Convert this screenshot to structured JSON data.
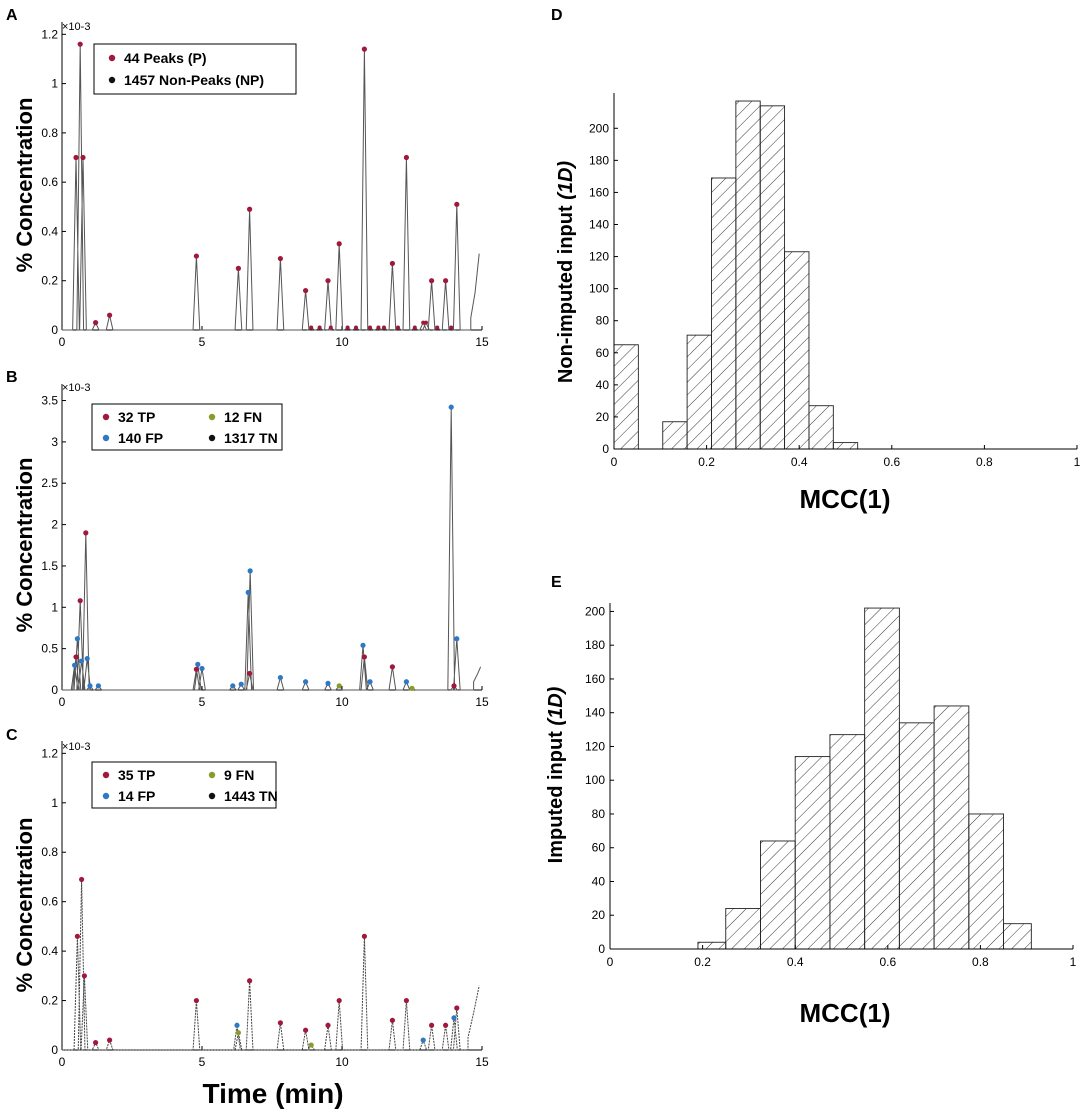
{
  "figure": {
    "time_label": "Time (min)"
  },
  "chart_data": [
    {
      "panel": "A",
      "type": "line",
      "ylabel": "% Concentration",
      "exponent": "×10-3",
      "xlim": [
        0,
        15
      ],
      "ylim": [
        0,
        1.25
      ],
      "xticks": [
        0,
        5,
        10,
        15
      ],
      "yticks": [
        0,
        0.2,
        0.4,
        0.6,
        0.8,
        1,
        1.2
      ],
      "ytick_labels": [
        "0",
        "0.2",
        "0.4",
        "0.6",
        "0.8",
        "1",
        "1.2"
      ],
      "legend": [
        {
          "label": "44 Peaks (P)",
          "color": "#a0183c"
        },
        {
          "label": "1457 Non-Peaks (NP)",
          "color": "#111111"
        }
      ],
      "peaks": [
        [
          0.5,
          0.7
        ],
        [
          0.65,
          1.16
        ],
        [
          0.75,
          0.7
        ],
        [
          1.2,
          0.03
        ],
        [
          1.7,
          0.06
        ],
        [
          4.8,
          0.3
        ],
        [
          6.3,
          0.25
        ],
        [
          6.7,
          0.49
        ],
        [
          7.8,
          0.29
        ],
        [
          8.7,
          0.16
        ],
        [
          9.5,
          0.2
        ],
        [
          9.9,
          0.35
        ],
        [
          10.8,
          1.14
        ],
        [
          11.8,
          0.27
        ],
        [
          12.3,
          0.7
        ],
        [
          13.2,
          0.2
        ],
        [
          13.7,
          0.2
        ],
        [
          14.1,
          0.51
        ]
      ],
      "minor_points": [
        [
          8.9,
          0.01
        ],
        [
          9.2,
          0.01
        ],
        [
          9.6,
          0.01
        ],
        [
          10.2,
          0.01
        ],
        [
          10.5,
          0.01
        ],
        [
          11.0,
          0.01
        ],
        [
          11.3,
          0.01
        ],
        [
          11.5,
          0.01
        ],
        [
          12.0,
          0.01
        ],
        [
          12.6,
          0.01
        ],
        [
          12.9,
          0.03
        ],
        [
          13.0,
          0.03
        ],
        [
          13.4,
          0.01
        ],
        [
          13.9,
          0.01
        ]
      ],
      "tail": [
        [
          14.6,
          0.05
        ],
        [
          14.75,
          0.15
        ],
        [
          14.9,
          0.31
        ]
      ]
    },
    {
      "panel": "B",
      "type": "line",
      "ylabel": "% Concentration",
      "exponent": "×10-3",
      "xlim": [
        0,
        15
      ],
      "ylim": [
        0,
        3.7
      ],
      "xticks": [
        0,
        5,
        10,
        15
      ],
      "yticks": [
        0,
        0.5,
        1,
        1.5,
        2,
        2.5,
        3,
        3.5
      ],
      "ytick_labels": [
        "0",
        "0.5",
        "1",
        "1.5",
        "2",
        "2.5",
        "3",
        "3.5"
      ],
      "legend": [
        {
          "label": "32 TP",
          "color": "#a0183c"
        },
        {
          "label": "12 FN",
          "color": "#8a9a2b"
        },
        {
          "label": "140 FP",
          "color": "#2f78c4"
        },
        {
          "label": "1317 TN",
          "color": "#111111"
        }
      ],
      "tp": [
        [
          0.5,
          0.4
        ],
        [
          0.65,
          1.08
        ],
        [
          0.85,
          1.9
        ],
        [
          4.8,
          0.25
        ],
        [
          6.7,
          0.2
        ],
        [
          10.8,
          0.4
        ],
        [
          11.8,
          0.28
        ],
        [
          14.0,
          0.05
        ]
      ],
      "fp": [
        [
          0.45,
          0.3
        ],
        [
          0.55,
          0.62
        ],
        [
          0.7,
          0.35
        ],
        [
          0.9,
          0.38
        ],
        [
          1.0,
          0.05
        ],
        [
          1.3,
          0.05
        ],
        [
          4.85,
          0.31
        ],
        [
          5.0,
          0.26
        ],
        [
          6.1,
          0.05
        ],
        [
          6.65,
          1.18
        ],
        [
          6.72,
          1.44
        ],
        [
          7.8,
          0.15
        ],
        [
          8.7,
          0.1
        ],
        [
          10.75,
          0.54
        ],
        [
          13.9,
          3.42
        ],
        [
          14.1,
          0.62
        ],
        [
          11.0,
          0.1
        ],
        [
          12.3,
          0.1
        ],
        [
          9.5,
          0.08
        ],
        [
          6.4,
          0.07
        ]
      ],
      "fn": [
        [
          9.9,
          0.05
        ],
        [
          12.5,
          0.02
        ]
      ],
      "tail": [
        [
          14.7,
          0.1
        ],
        [
          14.85,
          0.2
        ],
        [
          14.95,
          0.28
        ]
      ]
    },
    {
      "panel": "C",
      "type": "line",
      "ylabel": "% Concentration",
      "exponent": "×10-3",
      "xlabel_key": "time",
      "xlim": [
        0,
        15
      ],
      "ylim": [
        0,
        1.25
      ],
      "xticks": [
        0,
        5,
        10,
        15
      ],
      "yticks": [
        0,
        0.2,
        0.4,
        0.6,
        0.8,
        1,
        1.2
      ],
      "ytick_labels": [
        "0",
        "0.2",
        "0.4",
        "0.6",
        "0.8",
        "1",
        "1.2"
      ],
      "legend": [
        {
          "label": "35 TP",
          "color": "#a0183c"
        },
        {
          "label": "9 FN",
          "color": "#8a9a2b"
        },
        {
          "label": "14 FP",
          "color": "#2f78c4"
        },
        {
          "label": "1443 TN",
          "color": "#111111"
        }
      ],
      "tp": [
        [
          0.55,
          0.46
        ],
        [
          0.7,
          0.69
        ],
        [
          0.8,
          0.3
        ],
        [
          1.2,
          0.03
        ],
        [
          1.7,
          0.04
        ],
        [
          4.8,
          0.2
        ],
        [
          6.7,
          0.28
        ],
        [
          7.8,
          0.11
        ],
        [
          8.7,
          0.08
        ],
        [
          9.5,
          0.1
        ],
        [
          9.9,
          0.2
        ],
        [
          10.8,
          0.46
        ],
        [
          11.8,
          0.12
        ],
        [
          12.3,
          0.2
        ],
        [
          13.2,
          0.1
        ],
        [
          13.7,
          0.1
        ],
        [
          14.1,
          0.17
        ]
      ],
      "fp": [
        [
          6.25,
          0.1
        ],
        [
          14.0,
          0.13
        ],
        [
          12.9,
          0.04
        ]
      ],
      "fn": [
        [
          6.3,
          0.07
        ],
        [
          8.9,
          0.02
        ]
      ],
      "tail": [
        [
          14.5,
          0.05
        ],
        [
          14.7,
          0.15
        ],
        [
          14.9,
          0.26
        ]
      ]
    },
    {
      "panel": "D",
      "type": "bar",
      "ylabel_plain": "Non-imputed input ",
      "ylabel_italic": "(1D)",
      "xlabel": "MCC(1)",
      "xlim": [
        0,
        1
      ],
      "ylim": [
        0,
        222
      ],
      "xticks": [
        0,
        0.2,
        0.4,
        0.6,
        0.8,
        1
      ],
      "xtick_labels": [
        "0",
        "0.2",
        "0.4",
        "0.6",
        "0.8",
        "1"
      ],
      "yticks": [
        0,
        20,
        40,
        60,
        80,
        100,
        120,
        140,
        160,
        180,
        200
      ],
      "bin_edges": [
        0.0,
        0.0526,
        0.1053,
        0.1579,
        0.2105,
        0.2632,
        0.3158,
        0.3684,
        0.4211,
        0.4737,
        0.5263
      ],
      "counts": [
        65,
        0,
        17,
        71,
        169,
        217,
        214,
        123,
        27,
        4
      ]
    },
    {
      "panel": "E",
      "type": "bar",
      "ylabel_plain": "Imputed input ",
      "ylabel_italic": "(1D)",
      "xlabel": "MCC(1)",
      "xlim": [
        0,
        1
      ],
      "ylim": [
        0,
        205
      ],
      "xticks": [
        0,
        0.2,
        0.4,
        0.6,
        0.8,
        1
      ],
      "xtick_labels": [
        "0",
        "0.2",
        "0.4",
        "0.6",
        "0.8",
        "1"
      ],
      "yticks": [
        0,
        20,
        40,
        60,
        80,
        100,
        120,
        140,
        160,
        180,
        200
      ],
      "bin_edges": [
        0.19,
        0.25,
        0.325,
        0.4,
        0.475,
        0.55,
        0.625,
        0.7,
        0.775,
        0.85,
        0.91
      ],
      "counts": [
        4,
        24,
        64,
        114,
        127,
        202,
        134,
        144,
        80,
        15
      ]
    }
  ]
}
